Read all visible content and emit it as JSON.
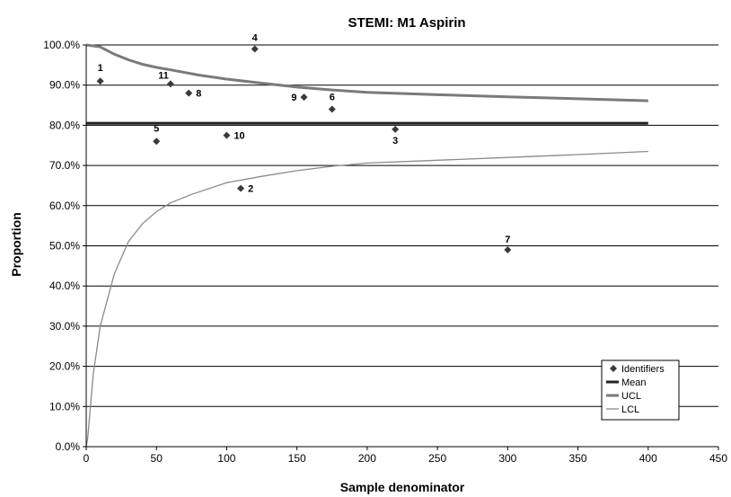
{
  "chart_data": {
    "type": "scatter",
    "title": "STEMI: M1 Aspirin",
    "xlabel": "Sample denominator",
    "ylabel": "Proportion",
    "xlim": [
      0,
      450
    ],
    "ylim": [
      0,
      1
    ],
    "x_ticks": [
      "0",
      "50",
      "100",
      "150",
      "200",
      "250",
      "300",
      "350",
      "400",
      "450"
    ],
    "y_ticks": [
      "0.0%",
      "10.0%",
      "20.0%",
      "30.0%",
      "40.0%",
      "50.0%",
      "60.0%",
      "70.0%",
      "80.0%",
      "90.0%",
      "100.0%"
    ],
    "grid": "horizontal",
    "legend_position": "bottom-right",
    "points_series_name": "Identifiers",
    "points": [
      {
        "label": "1",
        "x": 10,
        "y": 0.91
      },
      {
        "label": "2",
        "x": 110,
        "y": 0.643
      },
      {
        "label": "3",
        "x": 220,
        "y": 0.79
      },
      {
        "label": "4",
        "x": 120,
        "y": 0.99
      },
      {
        "label": "5",
        "x": 50,
        "y": 0.76
      },
      {
        "label": "6",
        "x": 175,
        "y": 0.84
      },
      {
        "label": "7",
        "x": 300,
        "y": 0.49
      },
      {
        "label": "8",
        "x": 73,
        "y": 0.88
      },
      {
        "label": "9",
        "x": 155,
        "y": 0.87
      },
      {
        "label": "10",
        "x": 100,
        "y": 0.775
      },
      {
        "label": "11",
        "x": 60,
        "y": 0.903
      }
    ],
    "mean": {
      "name": "Mean",
      "value": 0.805,
      "x_range": [
        0,
        400
      ]
    },
    "ucl": {
      "name": "UCL",
      "x": [
        0,
        10,
        20,
        30,
        40,
        50,
        60,
        80,
        100,
        120,
        150,
        175,
        200,
        250,
        300,
        350,
        400
      ],
      "y": [
        1.0,
        0.995,
        0.977,
        0.963,
        0.952,
        0.944,
        0.938,
        0.925,
        0.915,
        0.907,
        0.895,
        0.888,
        0.882,
        0.876,
        0.871,
        0.866,
        0.861
      ]
    },
    "lcl": {
      "name": "LCL",
      "x": [
        0,
        1,
        3,
        5,
        10,
        20,
        30,
        40,
        50,
        60,
        75,
        100,
        125,
        150,
        175,
        200,
        250,
        300,
        350,
        400
      ],
      "y": [
        0.0,
        0.02,
        0.1,
        0.18,
        0.3,
        0.43,
        0.51,
        0.555,
        0.585,
        0.607,
        0.628,
        0.657,
        0.673,
        0.687,
        0.698,
        0.706,
        0.713,
        0.72,
        0.727,
        0.735
      ]
    },
    "colors": {
      "points": "#3a3a3a",
      "mean": "#222222",
      "ucl": "#7a7a7a",
      "lcl": "#8a8a8a",
      "grid": "#000000"
    }
  }
}
